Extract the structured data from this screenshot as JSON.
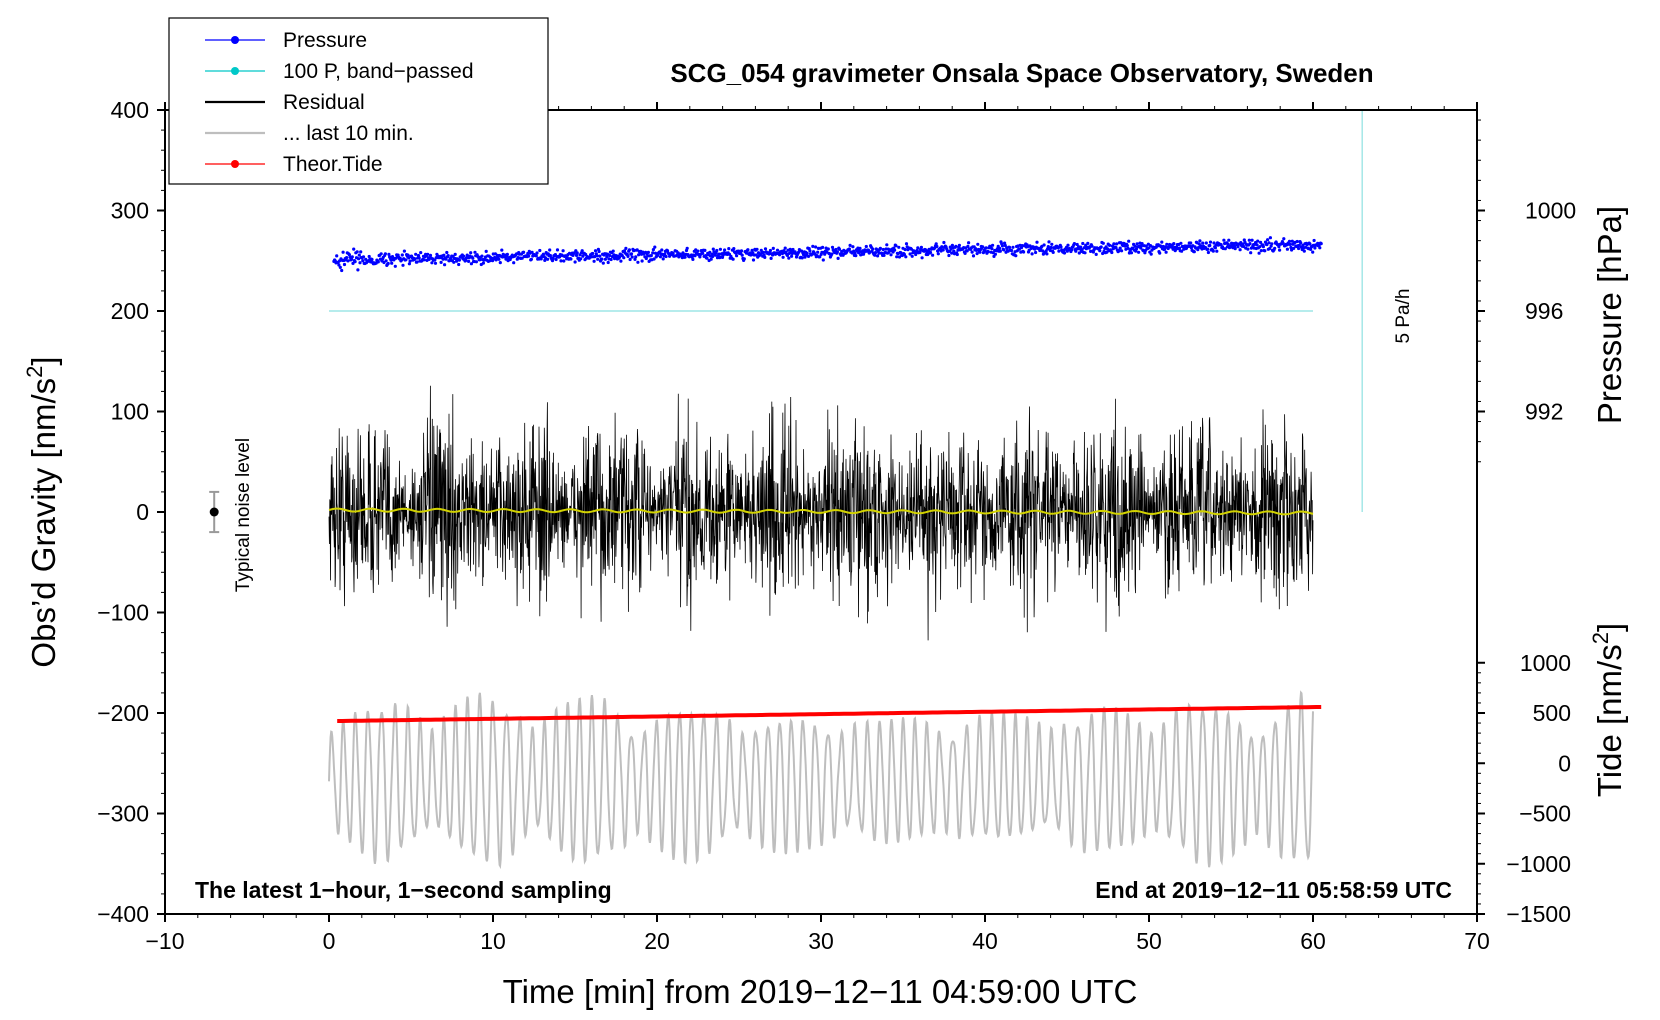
{
  "chart_data": {
    "type": "line",
    "title": "SCG_054 gravimeter Onsala Space Observatory, Sweden",
    "xlabel": "Time [min] from 2019−12−11 04:59:00 UTC",
    "ylabel": "Obs’d Gravity [nm/s²]",
    "ylabel_main": "Obs’d Gravity [nm/s",
    "ylabel_sup": "2",
    "ylabel_close": "]",
    "y2_label": "Pressure [hPa]",
    "y3_label_main": "Tide [nm/s",
    "y3_label_sup": "2",
    "y3_label_close": "]",
    "xlim": [
      -10,
      70
    ],
    "ylim": [
      -400,
      400
    ],
    "x_ticks": [
      -10,
      0,
      10,
      20,
      30,
      40,
      50,
      60,
      70
    ],
    "x_tick_labels": [
      "−10",
      "0",
      "10",
      "20",
      "30",
      "40",
      "50",
      "60",
      "70"
    ],
    "y_ticks": [
      400,
      300,
      200,
      100,
      0,
      -100,
      -200,
      -300,
      -400
    ],
    "y_tick_labels": [
      "400",
      "300",
      "200",
      "100",
      "0",
      "−100",
      "−200",
      "−300",
      "−400"
    ],
    "pressure_axis": {
      "ticks": [
        1000,
        996,
        992
      ],
      "tick_labels": [
        "1000",
        "996",
        "992"
      ],
      "ref_hpa": 996,
      "ref_gravity": 200,
      "nm_s2_per_hpa": 25
    },
    "tide_axis": {
      "ticks": [
        1000,
        500,
        0,
        -500,
        -1000,
        -1500
      ],
      "tick_labels": [
        "1000",
        "500",
        "0",
        "−500",
        "−1000",
        "−1500"
      ],
      "tide_at_y_minus400": -1500,
      "gravity_per_tide": 0.1
    },
    "legend": {
      "placement": "top-left",
      "entries": [
        {
          "label": "Pressure",
          "color": "#0000ff",
          "style": "line-dot"
        },
        {
          "label": "100 P, band−passed",
          "color": "#00c8c8",
          "style": "line-dot"
        },
        {
          "label": "Residual",
          "color": "#000000",
          "style": "line"
        },
        {
          "label": "... last 10 min.",
          "color": "#bebebe",
          "style": "line"
        },
        {
          "label": "Theor.Tide",
          "color": "#ff0000",
          "style": "line-dot"
        }
      ]
    },
    "series": [
      {
        "name": "Pressure",
        "color": "#0000ff",
        "x_range": [
          0.3,
          60.5
        ],
        "y_start": 251,
        "y_end": 266,
        "scatter": 4
      },
      {
        "name": "100 P, band-passed",
        "color": "#9ee6e6",
        "x": [
          0,
          60
        ],
        "y": [
          200,
          200
        ]
      },
      {
        "name": "Residual",
        "color": "#000000",
        "x_range": [
          0,
          60
        ],
        "envelope": 85,
        "max": 147,
        "min": -152
      },
      {
        "name": "Residual mean",
        "color": "#d2d200",
        "x": [
          0,
          60
        ],
        "y": [
          2,
          -1
        ]
      },
      {
        "name": "Theor.Tide",
        "color": "#ff0000",
        "x": [
          0.5,
          60.5
        ],
        "y": [
          -208,
          -194
        ]
      },
      {
        "name": "... last 10 min.",
        "color": "#bebebe",
        "x_range": [
          0,
          60
        ],
        "center": -268,
        "amplitude_max": 82
      },
      {
        "name": "5 Pa/h",
        "color": "#9ee6e6",
        "x": [
          63,
          63
        ],
        "y": [
          0,
          400
        ]
      }
    ],
    "noise_level": {
      "x": -7,
      "y": 0,
      "err": 20,
      "label": "Typical noise level"
    },
    "annotations": {
      "left": "The latest 1−hour, 1−second sampling",
      "right": "End at 2019−12−11 05:58:59 UTC",
      "trend": "5 Pa/h"
    },
    "grid": false
  }
}
